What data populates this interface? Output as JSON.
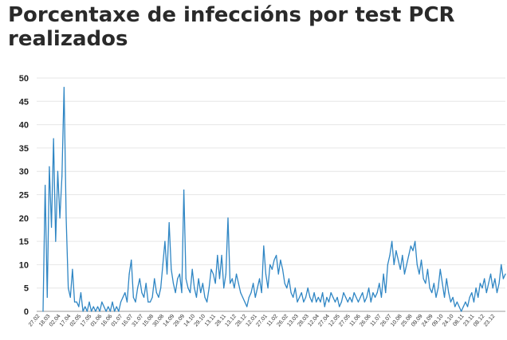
{
  "chart_data": {
    "type": "line",
    "title": "Porcentaxe de infeccións por test PCR realizados",
    "xlabel": "",
    "ylabel": "",
    "ylim": [
      0,
      50
    ],
    "yticks": [
      0,
      5,
      10,
      15,
      20,
      25,
      30,
      35,
      40,
      45,
      50
    ],
    "xtick_labels": [
      "27.02",
      "18.03",
      "02.04",
      "17.04",
      "02.05",
      "17.05",
      "01.06",
      "16.06",
      "01.07",
      "16.07",
      "31.07",
      "15.08",
      "30.08",
      "14.09",
      "29.09",
      "14.10",
      "29.10",
      "13.11",
      "28.11",
      "13.12",
      "28.12",
      "12.01",
      "27.01",
      "11.02",
      "26.02",
      "13.03",
      "28.03",
      "12.04",
      "27.04",
      "12.05",
      "27.05",
      "11.06",
      "26.06",
      "11.07",
      "26.07",
      "10.08",
      "25.08",
      "09.09",
      "24.09",
      "09.10",
      "24.10",
      "08.11",
      "23.11",
      "08.12",
      "23.12"
    ],
    "grid": true,
    "legend": "none",
    "colors": {
      "series": "#2f86c4",
      "grid": "#e6e6e6",
      "title": "#2a2a2a"
    },
    "series": [
      {
        "values": [
          0,
          27,
          3,
          31,
          18,
          37,
          15,
          30,
          20,
          29,
          48,
          20,
          5,
          3,
          9,
          2,
          2,
          1,
          4,
          0,
          1,
          0,
          2,
          0,
          1,
          0,
          1,
          0,
          2,
          1,
          0,
          1,
          0,
          2,
          0,
          1,
          0,
          2,
          3,
          4,
          2,
          8,
          11,
          3,
          2,
          5,
          7,
          4,
          3,
          6,
          2,
          2,
          3,
          7,
          4,
          3,
          5,
          10,
          15,
          8,
          19,
          9,
          6,
          4,
          7,
          8,
          4,
          26,
          7,
          5,
          4,
          9,
          5,
          3,
          7,
          4,
          6,
          3,
          2,
          5,
          9,
          8,
          6,
          12,
          7,
          12,
          5,
          8,
          20,
          6,
          7,
          5,
          8,
          6,
          4,
          3,
          2,
          1,
          3,
          4,
          6,
          3,
          5,
          7,
          4,
          14,
          8,
          5,
          10,
          9,
          11,
          12,
          8,
          11,
          9,
          6,
          5,
          7,
          4,
          3,
          5,
          2,
          3,
          4,
          2,
          3,
          5,
          3,
          2,
          4,
          2,
          3,
          2,
          4,
          1,
          3,
          2,
          4,
          3,
          2,
          3,
          1,
          2,
          4,
          3,
          2,
          3,
          2,
          4,
          3,
          2,
          3,
          4,
          2,
          3,
          5,
          2,
          4,
          3,
          4,
          6,
          3,
          8,
          4,
          10,
          12,
          15,
          10,
          13,
          11,
          9,
          12,
          8,
          10,
          12,
          14,
          13,
          15,
          10,
          8,
          11,
          7,
          6,
          9,
          5,
          4,
          6,
          3,
          5,
          9,
          6,
          3,
          7,
          4,
          2,
          3,
          1,
          2,
          1,
          0,
          1,
          2,
          1,
          3,
          4,
          2,
          5,
          3,
          6,
          5,
          7,
          4,
          6,
          8,
          5,
          7,
          4,
          6,
          10,
          7,
          8
        ]
      }
    ]
  }
}
